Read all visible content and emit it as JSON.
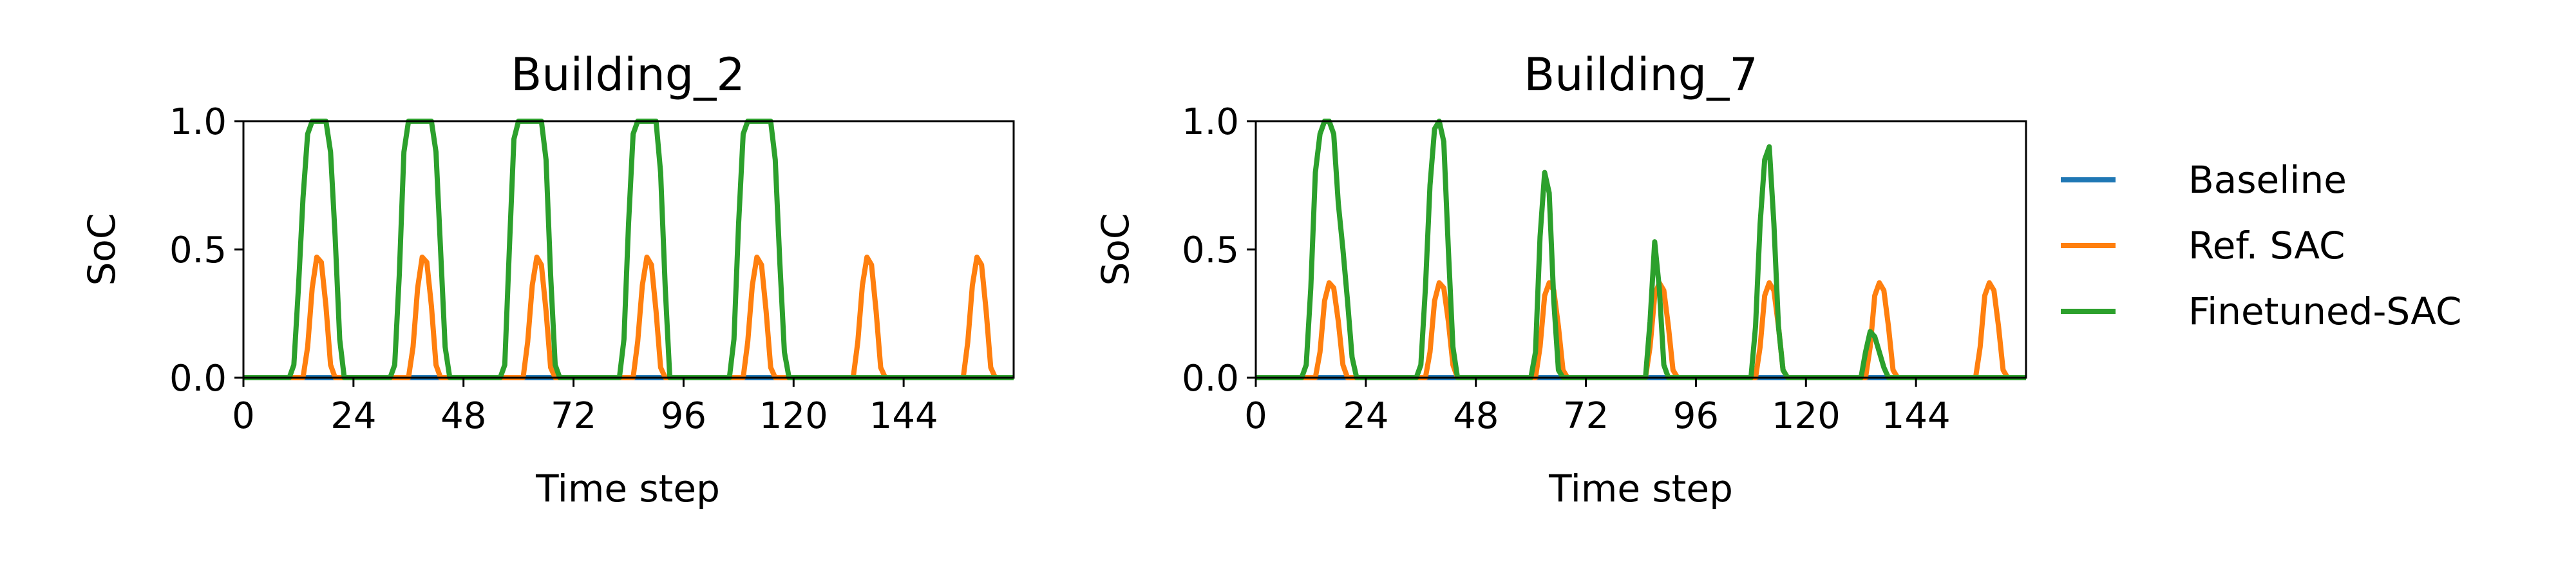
{
  "chart_data": [
    {
      "type": "line",
      "title": "Building_2",
      "xlabel": "Time step",
      "ylabel": "SoC",
      "xlim": [
        0,
        168
      ],
      "ylim": [
        0,
        1
      ],
      "xticks": [
        0,
        24,
        48,
        72,
        96,
        120,
        144
      ],
      "yticks": [
        0.0,
        0.5,
        1.0
      ],
      "ytick_labels": [
        "0.0",
        "0.5",
        "1.0"
      ],
      "grid": false,
      "series": [
        {
          "name": "Baseline",
          "color": "#1f77b4",
          "points": [
            [
              0,
              0
            ],
            [
              168,
              0
            ]
          ]
        },
        {
          "name": "Ref. SAC",
          "color": "#ff7f0e",
          "points": [
            [
              0,
              0
            ],
            [
              13,
              0
            ],
            [
              14,
              0.12
            ],
            [
              15,
              0.35
            ],
            [
              16,
              0.47
            ],
            [
              17,
              0.45
            ],
            [
              18,
              0.28
            ],
            [
              19,
              0.05
            ],
            [
              20,
              0
            ],
            [
              36,
              0
            ],
            [
              37,
              0.12
            ],
            [
              38,
              0.35
            ],
            [
              39,
              0.47
            ],
            [
              40,
              0.45
            ],
            [
              41,
              0.28
            ],
            [
              42,
              0.05
            ],
            [
              43,
              0
            ],
            [
              61,
              0
            ],
            [
              62,
              0.14
            ],
            [
              63,
              0.36
            ],
            [
              64,
              0.47
            ],
            [
              65,
              0.44
            ],
            [
              66,
              0.26
            ],
            [
              67,
              0.04
            ],
            [
              68,
              0
            ],
            [
              85,
              0
            ],
            [
              86,
              0.14
            ],
            [
              87,
              0.36
            ],
            [
              88,
              0.47
            ],
            [
              89,
              0.44
            ],
            [
              90,
              0.26
            ],
            [
              91,
              0.04
            ],
            [
              92,
              0
            ],
            [
              109,
              0
            ],
            [
              110,
              0.14
            ],
            [
              111,
              0.36
            ],
            [
              112,
              0.47
            ],
            [
              113,
              0.44
            ],
            [
              114,
              0.26
            ],
            [
              115,
              0.04
            ],
            [
              116,
              0
            ],
            [
              133,
              0
            ],
            [
              134,
              0.14
            ],
            [
              135,
              0.36
            ],
            [
              136,
              0.47
            ],
            [
              137,
              0.44
            ],
            [
              138,
              0.26
            ],
            [
              139,
              0.04
            ],
            [
              140,
              0
            ],
            [
              157,
              0
            ],
            [
              158,
              0.14
            ],
            [
              159,
              0.36
            ],
            [
              160,
              0.47
            ],
            [
              161,
              0.44
            ],
            [
              162,
              0.26
            ],
            [
              163,
              0.04
            ],
            [
              164,
              0
            ],
            [
              168,
              0
            ]
          ]
        },
        {
          "name": "Finetuned-SAC",
          "color": "#2ca02c",
          "points": [
            [
              0,
              0
            ],
            [
              10,
              0
            ],
            [
              11,
              0.05
            ],
            [
              12,
              0.35
            ],
            [
              13,
              0.7
            ],
            [
              14,
              0.95
            ],
            [
              15,
              1.0
            ],
            [
              16,
              1.0
            ],
            [
              17,
              1.0
            ],
            [
              18,
              1.0
            ],
            [
              19,
              0.88
            ],
            [
              20,
              0.55
            ],
            [
              21,
              0.15
            ],
            [
              22,
              0
            ],
            [
              32,
              0
            ],
            [
              33,
              0.05
            ],
            [
              34,
              0.4
            ],
            [
              35,
              0.88
            ],
            [
              36,
              1.0
            ],
            [
              37,
              1.0
            ],
            [
              38,
              1.0
            ],
            [
              39,
              1.0
            ],
            [
              40,
              1.0
            ],
            [
              41,
              1.0
            ],
            [
              42,
              0.88
            ],
            [
              43,
              0.5
            ],
            [
              44,
              0.12
            ],
            [
              45,
              0
            ],
            [
              56,
              0
            ],
            [
              57,
              0.05
            ],
            [
              58,
              0.5
            ],
            [
              59,
              0.93
            ],
            [
              60,
              1.0
            ],
            [
              61,
              1.0
            ],
            [
              62,
              1.0
            ],
            [
              63,
              1.0
            ],
            [
              64,
              1.0
            ],
            [
              65,
              1.0
            ],
            [
              66,
              0.85
            ],
            [
              67,
              0.4
            ],
            [
              68,
              0.05
            ],
            [
              69,
              0
            ],
            [
              82,
              0
            ],
            [
              83,
              0.15
            ],
            [
              84,
              0.6
            ],
            [
              85,
              0.95
            ],
            [
              86,
              1.0
            ],
            [
              87,
              1.0
            ],
            [
              88,
              1.0
            ],
            [
              89,
              1.0
            ],
            [
              90,
              1.0
            ],
            [
              91,
              0.8
            ],
            [
              92,
              0.35
            ],
            [
              93,
              0
            ],
            [
              106,
              0
            ],
            [
              107,
              0.15
            ],
            [
              108,
              0.6
            ],
            [
              109,
              0.95
            ],
            [
              110,
              1.0
            ],
            [
              111,
              1.0
            ],
            [
              112,
              1.0
            ],
            [
              113,
              1.0
            ],
            [
              114,
              1.0
            ],
            [
              115,
              1.0
            ],
            [
              116,
              0.85
            ],
            [
              117,
              0.45
            ],
            [
              118,
              0.1
            ],
            [
              119,
              0
            ],
            [
              168,
              0
            ]
          ]
        }
      ]
    },
    {
      "type": "line",
      "title": "Building_7",
      "xlabel": "Time step",
      "ylabel": "SoC",
      "xlim": [
        0,
        168
      ],
      "ylim": [
        0,
        1
      ],
      "xticks": [
        0,
        24,
        48,
        72,
        96,
        120,
        144
      ],
      "yticks": [
        0.0,
        0.5,
        1.0
      ],
      "ytick_labels": [
        "0.0",
        "0.5",
        "1.0"
      ],
      "grid": false,
      "series": [
        {
          "name": "Baseline",
          "color": "#1f77b4",
          "points": [
            [
              0,
              0
            ],
            [
              168,
              0
            ]
          ]
        },
        {
          "name": "Ref. SAC",
          "color": "#ff7f0e",
          "points": [
            [
              0,
              0
            ],
            [
              13,
              0
            ],
            [
              14,
              0.1
            ],
            [
              15,
              0.3
            ],
            [
              16,
              0.37
            ],
            [
              17,
              0.35
            ],
            [
              18,
              0.22
            ],
            [
              19,
              0.05
            ],
            [
              20,
              0
            ],
            [
              37,
              0
            ],
            [
              38,
              0.1
            ],
            [
              39,
              0.3
            ],
            [
              40,
              0.37
            ],
            [
              41,
              0.35
            ],
            [
              42,
              0.22
            ],
            [
              43,
              0.05
            ],
            [
              44,
              0
            ],
            [
              61,
              0
            ],
            [
              62,
              0.12
            ],
            [
              63,
              0.32
            ],
            [
              64,
              0.37
            ],
            [
              65,
              0.34
            ],
            [
              66,
              0.2
            ],
            [
              67,
              0.03
            ],
            [
              68,
              0
            ],
            [
              85,
              0
            ],
            [
              86,
              0.12
            ],
            [
              87,
              0.32
            ],
            [
              88,
              0.37
            ],
            [
              89,
              0.34
            ],
            [
              90,
              0.2
            ],
            [
              91,
              0.03
            ],
            [
              92,
              0
            ],
            [
              109,
              0
            ],
            [
              110,
              0.12
            ],
            [
              111,
              0.32
            ],
            [
              112,
              0.37
            ],
            [
              113,
              0.34
            ],
            [
              114,
              0.2
            ],
            [
              115,
              0.03
            ],
            [
              116,
              0
            ],
            [
              133,
              0
            ],
            [
              134,
              0.12
            ],
            [
              135,
              0.32
            ],
            [
              136,
              0.37
            ],
            [
              137,
              0.34
            ],
            [
              138,
              0.2
            ],
            [
              139,
              0.03
            ],
            [
              140,
              0
            ],
            [
              157,
              0
            ],
            [
              158,
              0.12
            ],
            [
              159,
              0.32
            ],
            [
              160,
              0.37
            ],
            [
              161,
              0.34
            ],
            [
              162,
              0.2
            ],
            [
              163,
              0.03
            ],
            [
              164,
              0
            ],
            [
              168,
              0
            ]
          ]
        },
        {
          "name": "Finetuned-SAC",
          "color": "#2ca02c",
          "points": [
            [
              0,
              0
            ],
            [
              10,
              0
            ],
            [
              11,
              0.05
            ],
            [
              12,
              0.35
            ],
            [
              13,
              0.8
            ],
            [
              14,
              0.95
            ],
            [
              15,
              1.0
            ],
            [
              16,
              1.0
            ],
            [
              17,
              0.95
            ],
            [
              18,
              0.68
            ],
            [
              19,
              0.5
            ],
            [
              20,
              0.3
            ],
            [
              21,
              0.08
            ],
            [
              22,
              0
            ],
            [
              35,
              0
            ],
            [
              36,
              0.05
            ],
            [
              37,
              0.35
            ],
            [
              38,
              0.75
            ],
            [
              39,
              0.97
            ],
            [
              40,
              1.0
            ],
            [
              41,
              0.92
            ],
            [
              42,
              0.5
            ],
            [
              43,
              0.12
            ],
            [
              44,
              0
            ],
            [
              60,
              0
            ],
            [
              61,
              0.1
            ],
            [
              62,
              0.55
            ],
            [
              63,
              0.8
            ],
            [
              64,
              0.72
            ],
            [
              65,
              0.3
            ],
            [
              66,
              0.03
            ],
            [
              67,
              0
            ],
            [
              85,
              0
            ],
            [
              86,
              0.22
            ],
            [
              87,
              0.53
            ],
            [
              88,
              0.35
            ],
            [
              89,
              0.05
            ],
            [
              90,
              0
            ],
            [
              108,
              0
            ],
            [
              109,
              0.2
            ],
            [
              110,
              0.6
            ],
            [
              111,
              0.85
            ],
            [
              112,
              0.9
            ],
            [
              113,
              0.6
            ],
            [
              114,
              0.2
            ],
            [
              115,
              0.03
            ],
            [
              116,
              0
            ],
            [
              132,
              0
            ],
            [
              133,
              0.1
            ],
            [
              134,
              0.18
            ],
            [
              135,
              0.16
            ],
            [
              136,
              0.1
            ],
            [
              137,
              0.04
            ],
            [
              138,
              0
            ],
            [
              168,
              0
            ]
          ]
        }
      ]
    }
  ],
  "legend": {
    "placement": "right",
    "entries": [
      {
        "label": "Baseline",
        "color": "#1f77b4"
      },
      {
        "label": "Ref. SAC",
        "color": "#ff7f0e"
      },
      {
        "label": "Finetuned-SAC",
        "color": "#2ca02c"
      }
    ]
  }
}
